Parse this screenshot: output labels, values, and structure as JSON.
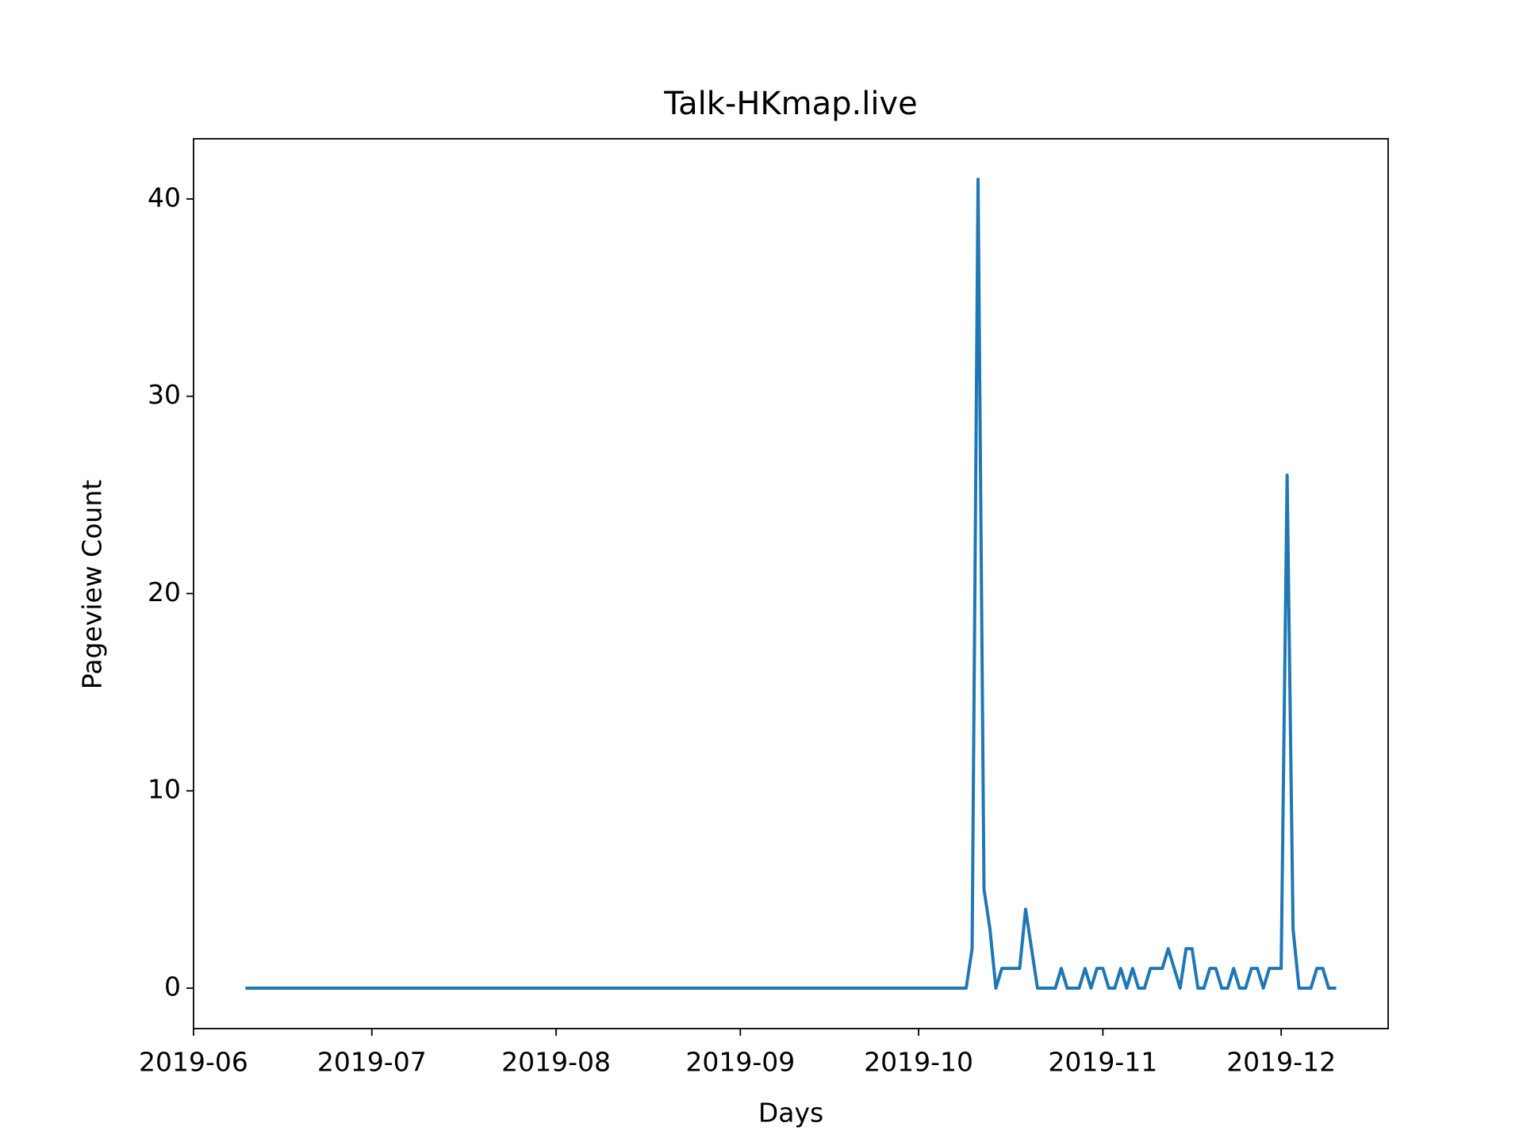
{
  "chart_data": {
    "type": "line",
    "title": "Talk-HKmap.live",
    "xlabel": "Days",
    "ylabel": "Pageview Count",
    "color": "#1f77b4",
    "x": [
      161,
      162,
      163,
      164,
      165,
      166,
      167,
      168,
      169,
      170,
      171,
      172,
      173,
      174,
      175,
      176,
      177,
      178,
      179,
      180,
      181,
      182,
      183,
      184,
      185,
      186,
      187,
      188,
      189,
      190,
      191,
      192,
      193,
      194,
      195,
      196,
      197,
      198,
      199,
      200,
      201,
      202,
      203,
      204,
      205,
      206,
      207,
      208,
      209,
      210,
      211,
      212,
      213,
      214,
      215,
      216,
      217,
      218,
      219,
      220,
      221,
      222,
      223,
      224,
      225,
      226,
      227,
      228,
      229,
      230,
      231,
      232,
      233,
      234,
      235,
      236,
      237,
      238,
      239,
      240,
      241,
      242,
      243,
      244,
      245,
      246,
      247,
      248,
      249,
      250,
      251,
      252,
      253,
      254,
      255,
      256,
      257,
      258,
      259,
      260,
      261,
      262,
      263,
      264,
      265,
      266,
      267,
      268,
      269,
      270,
      271,
      272,
      273,
      274,
      275,
      276,
      277,
      278,
      279,
      280,
      281,
      282,
      283,
      284,
      285,
      286,
      287,
      288,
      289,
      290,
      291,
      292,
      293,
      294,
      295,
      296,
      297,
      298,
      299,
      300,
      301,
      302,
      303,
      304,
      305,
      306,
      307,
      308,
      309,
      310,
      311,
      312,
      313,
      314,
      315,
      316,
      317,
      318,
      319,
      320,
      321,
      322,
      323,
      324,
      325,
      326,
      327,
      328,
      329,
      330,
      331,
      332,
      333,
      334,
      335,
      336,
      337,
      338,
      339,
      340,
      341,
      342,
      343,
      344
    ],
    "values": [
      0,
      0,
      0,
      0,
      0,
      0,
      0,
      0,
      0,
      0,
      0,
      0,
      0,
      0,
      0,
      0,
      0,
      0,
      0,
      0,
      0,
      0,
      0,
      0,
      0,
      0,
      0,
      0,
      0,
      0,
      0,
      0,
      0,
      0,
      0,
      0,
      0,
      0,
      0,
      0,
      0,
      0,
      0,
      0,
      0,
      0,
      0,
      0,
      0,
      0,
      0,
      0,
      0,
      0,
      0,
      0,
      0,
      0,
      0,
      0,
      0,
      0,
      0,
      0,
      0,
      0,
      0,
      0,
      0,
      0,
      0,
      0,
      0,
      0,
      0,
      0,
      0,
      0,
      0,
      0,
      0,
      0,
      0,
      0,
      0,
      0,
      0,
      0,
      0,
      0,
      0,
      0,
      0,
      0,
      0,
      0,
      0,
      0,
      0,
      0,
      0,
      0,
      0,
      0,
      0,
      0,
      0,
      0,
      0,
      0,
      0,
      0,
      0,
      0,
      0,
      0,
      0,
      0,
      0,
      0,
      0,
      0,
      2,
      41,
      5,
      3,
      0,
      1,
      1,
      1,
      1,
      4,
      2,
      0,
      0,
      0,
      0,
      1,
      0,
      0,
      0,
      1,
      0,
      1,
      1,
      0,
      0,
      1,
      0,
      1,
      0,
      0,
      1,
      1,
      1,
      2,
      1,
      0,
      2,
      2,
      0,
      0,
      1,
      1,
      0,
      0,
      1,
      0,
      0,
      1,
      1,
      0,
      1,
      1,
      1,
      26,
      3,
      0,
      0,
      0,
      1,
      1,
      0,
      0
    ],
    "xlim": [
      152,
      353
    ],
    "xticks": [
      {
        "value": 152,
        "label": "2019-06"
      },
      {
        "value": 182,
        "label": "2019-07"
      },
      {
        "value": 213,
        "label": "2019-08"
      },
      {
        "value": 244,
        "label": "2019-09"
      },
      {
        "value": 274,
        "label": "2019-10"
      },
      {
        "value": 305,
        "label": "2019-11"
      },
      {
        "value": 335,
        "label": "2019-12"
      }
    ],
    "ylim": [
      -2.05,
      43.05
    ],
    "yticks": [
      0,
      10,
      20,
      30,
      40
    ],
    "grid": false
  }
}
